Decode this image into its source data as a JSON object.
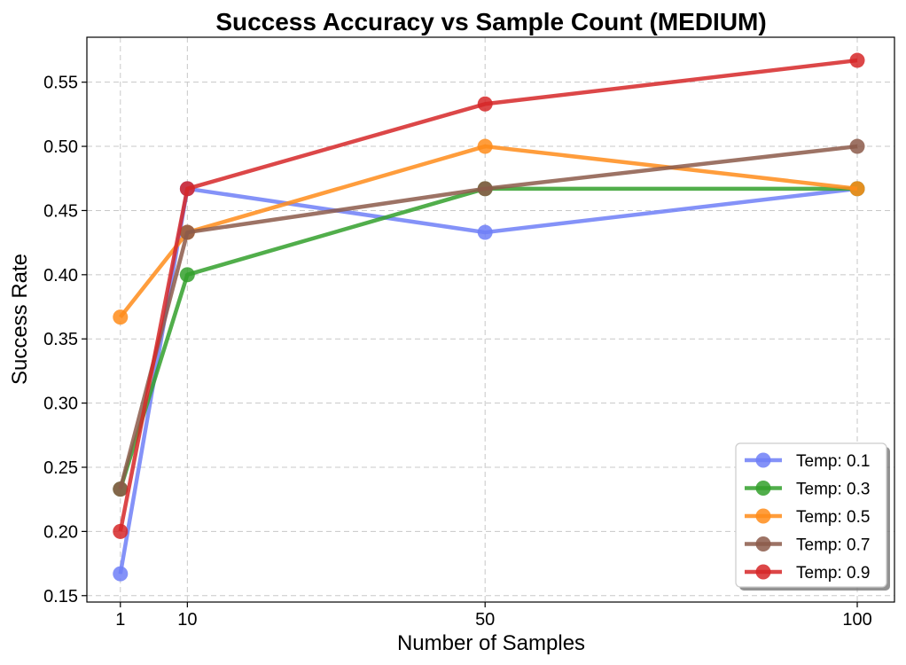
{
  "chart_data": {
    "type": "line",
    "title": "Success Accuracy vs Sample Count (MEDIUM)",
    "xlabel": "Number of Samples",
    "ylabel": "Success Rate",
    "x": [
      1,
      10,
      50,
      100
    ],
    "xticks": [
      "1",
      "10",
      "50",
      "100"
    ],
    "xlim": [
      -3.5,
      105
    ],
    "ylim": [
      0.145,
      0.585
    ],
    "yticks": [
      "0.15",
      "0.20",
      "0.25",
      "0.30",
      "0.35",
      "0.40",
      "0.45",
      "0.50",
      "0.55"
    ],
    "grid": true,
    "legend_position": "lower-right",
    "series": [
      {
        "name": "Temp: 0.1",
        "color": "#6e7ff7",
        "values": [
          0.167,
          0.467,
          0.433,
          0.467
        ]
      },
      {
        "name": "Temp: 0.3",
        "color": "#33a02c",
        "values": [
          0.233,
          0.4,
          0.467,
          0.467
        ]
      },
      {
        "name": "Temp: 0.5",
        "color": "#ff8c1a",
        "values": [
          0.367,
          0.433,
          0.5,
          0.467
        ]
      },
      {
        "name": "Temp: 0.7",
        "color": "#8c5a4a",
        "values": [
          0.233,
          0.433,
          0.467,
          0.5
        ]
      },
      {
        "name": "Temp: 0.9",
        "color": "#d62728",
        "values": [
          0.2,
          0.467,
          0.533,
          0.567
        ]
      }
    ]
  }
}
